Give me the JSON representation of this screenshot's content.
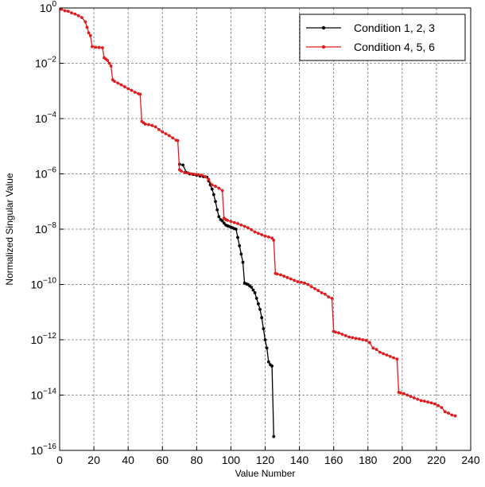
{
  "chart_data": {
    "type": "line",
    "xlabel": "Value Number",
    "ylabel": "Normalized Singular Value",
    "xlim": [
      0,
      240
    ],
    "ylim_log10": [
      -16,
      0
    ],
    "yscale": "log",
    "grid": true,
    "legend_position": "top-right",
    "x_ticks": [
      "0",
      "20",
      "40",
      "60",
      "80",
      "100",
      "120",
      "140",
      "160",
      "180",
      "200",
      "220",
      "240"
    ],
    "y_ticks": [
      {
        "base": "10",
        "exp": "0"
      },
      {
        "base": "10",
        "exp": "−2"
      },
      {
        "base": "10",
        "exp": "−4"
      },
      {
        "base": "10",
        "exp": "−6"
      },
      {
        "base": "10",
        "exp": "−8"
      },
      {
        "base": "10",
        "exp": "−10"
      },
      {
        "base": "10",
        "exp": "−12"
      },
      {
        "base": "10",
        "exp": "−14"
      },
      {
        "base": "10",
        "exp": "−16"
      }
    ],
    "series": [
      {
        "name": "Condition 1, 2, 3",
        "color": "#000000",
        "x": [
          70,
          72,
          74,
          76,
          78,
          80,
          82,
          84,
          86,
          87,
          88,
          89,
          90,
          91,
          92,
          93,
          94,
          95,
          96,
          97,
          98,
          99,
          100,
          101,
          102,
          103,
          104,
          105,
          106,
          107,
          108,
          109,
          110,
          111,
          112,
          113,
          114,
          115,
          116,
          117,
          118,
          119,
          120,
          121,
          122,
          123,
          124,
          125
        ],
        "log10_y": [
          -5.65,
          -5.68,
          -5.95,
          -6.0,
          -6.02,
          -6.05,
          -6.08,
          -6.1,
          -6.12,
          -6.25,
          -6.4,
          -6.55,
          -6.75,
          -7.0,
          -7.3,
          -7.55,
          -7.65,
          -7.7,
          -7.78,
          -7.85,
          -7.88,
          -7.9,
          -7.93,
          -7.95,
          -7.98,
          -8.0,
          -8.3,
          -8.6,
          -8.9,
          -9.2,
          -9.95,
          -9.98,
          -10.0,
          -10.05,
          -10.1,
          -10.2,
          -10.3,
          -10.5,
          -10.7,
          -10.9,
          -11.2,
          -11.6,
          -12.0,
          -12.3,
          -12.8,
          -12.9,
          -12.95,
          -15.5
        ]
      },
      {
        "name": "Condition 4, 5, 6",
        "color": "#e41a1c",
        "x": [
          1,
          3,
          5,
          7,
          9,
          11,
          13,
          15,
          16,
          17,
          18,
          19,
          21,
          23,
          25,
          26,
          27,
          28,
          29,
          30,
          31,
          32,
          34,
          36,
          38,
          40,
          42,
          44,
          46,
          47,
          48,
          49,
          50,
          52,
          54,
          56,
          58,
          60,
          62,
          64,
          66,
          68,
          69,
          70,
          71,
          73,
          75,
          77,
          79,
          81,
          83,
          85,
          87,
          89,
          91,
          93,
          95,
          96,
          97,
          98,
          100,
          102,
          104,
          106,
          108,
          110,
          112,
          114,
          116,
          118,
          120,
          122,
          124,
          125,
          126,
          127,
          129,
          131,
          133,
          135,
          137,
          139,
          141,
          143,
          145,
          147,
          149,
          151,
          153,
          155,
          157,
          159,
          160,
          161,
          163,
          165,
          167,
          169,
          171,
          173,
          175,
          177,
          179,
          181,
          183,
          185,
          187,
          189,
          191,
          193,
          195,
          197,
          198,
          199,
          201,
          203,
          205,
          207,
          209,
          211,
          213,
          215,
          217,
          219,
          221,
          223,
          225,
          227,
          229,
          231
        ],
        "log10_y": [
          -0.05,
          -0.1,
          -0.12,
          -0.18,
          -0.22,
          -0.28,
          -0.35,
          -0.5,
          -0.7,
          -0.9,
          -1.0,
          -1.4,
          -1.42,
          -1.43,
          -1.44,
          -1.8,
          -1.85,
          -1.9,
          -2.0,
          -2.1,
          -2.6,
          -2.65,
          -2.72,
          -2.78,
          -2.85,
          -2.92,
          -2.98,
          -3.05,
          -3.1,
          -3.12,
          -4.1,
          -4.15,
          -4.2,
          -4.22,
          -4.25,
          -4.3,
          -4.4,
          -4.48,
          -4.55,
          -4.62,
          -4.7,
          -4.78,
          -4.8,
          -5.85,
          -5.9,
          -5.95,
          -5.97,
          -6.0,
          -6.02,
          -6.03,
          -6.05,
          -6.1,
          -6.2,
          -6.4,
          -6.45,
          -6.52,
          -6.6,
          -7.6,
          -7.65,
          -7.68,
          -7.72,
          -7.76,
          -7.8,
          -7.85,
          -7.9,
          -7.95,
          -8.02,
          -8.1,
          -8.15,
          -8.2,
          -8.25,
          -8.28,
          -8.32,
          -8.4,
          -9.6,
          -9.62,
          -9.65,
          -9.7,
          -9.75,
          -9.8,
          -9.85,
          -9.9,
          -9.92,
          -9.95,
          -10.0,
          -10.08,
          -10.15,
          -10.22,
          -10.3,
          -10.35,
          -10.45,
          -10.5,
          -11.7,
          -11.72,
          -11.75,
          -11.8,
          -11.85,
          -11.9,
          -11.92,
          -11.95,
          -11.97,
          -12.0,
          -12.02,
          -12.1,
          -12.3,
          -12.35,
          -12.45,
          -12.5,
          -12.55,
          -12.6,
          -12.65,
          -12.7,
          -13.9,
          -13.92,
          -13.95,
          -14.0,
          -14.05,
          -14.1,
          -14.15,
          -14.2,
          -14.22,
          -14.25,
          -14.28,
          -14.32,
          -14.38,
          -14.45,
          -14.6,
          -14.65,
          -14.72,
          -14.75
        ]
      }
    ]
  }
}
